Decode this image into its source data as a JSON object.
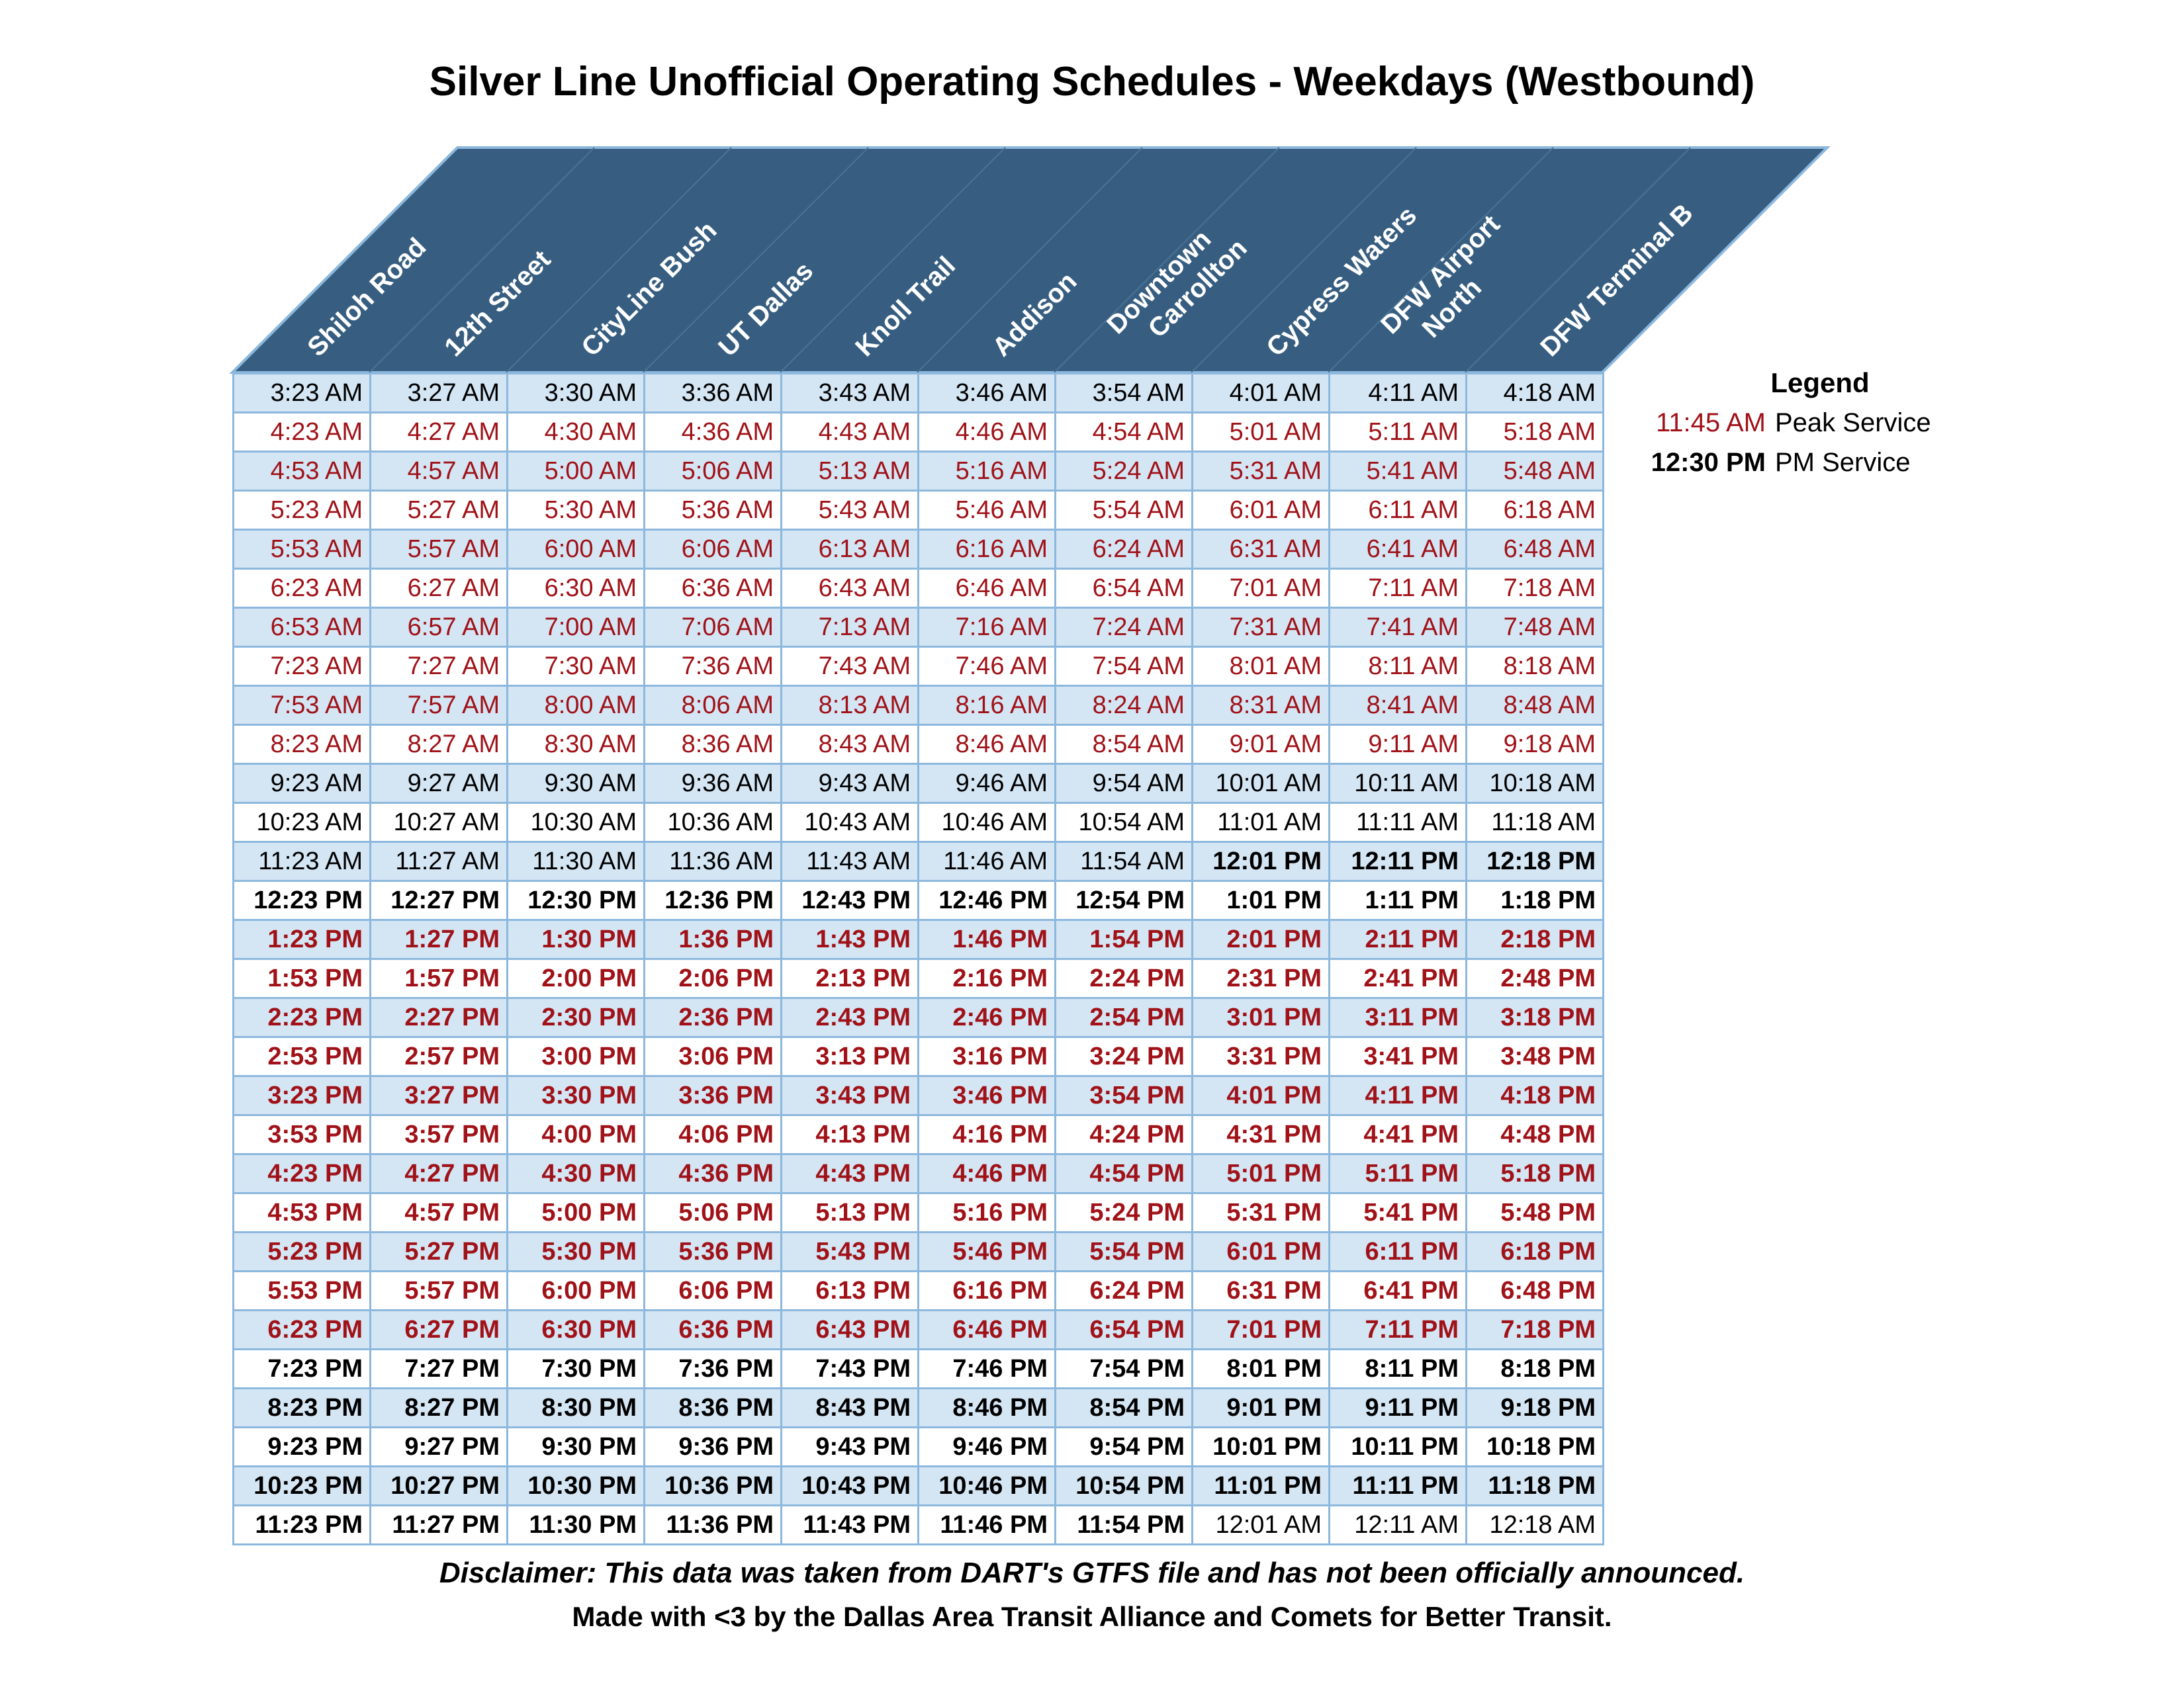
{
  "title": "Silver Line Unofficial Operating Schedules - Weekdays (Westbound)",
  "colors": {
    "header": "#375e80",
    "peak": "#a01218",
    "grid": "#8db8de",
    "shade": "#d4e5f4"
  },
  "stations": [
    [
      "Shiloh Road"
    ],
    [
      "12th Street"
    ],
    [
      "CityLine Bush"
    ],
    [
      "UT Dallas"
    ],
    [
      "Knoll Trail"
    ],
    [
      "Addison"
    ],
    [
      "Downtown",
      "Carrollton"
    ],
    [
      "Cypress Waters"
    ],
    [
      "DFW Airport",
      "North"
    ],
    [
      "DFW Terminal B"
    ]
  ],
  "rows": [
    {
      "style": "normal",
      "times": [
        "3:23 AM",
        "3:27 AM",
        "3:30 AM",
        "3:36 AM",
        "3:43 AM",
        "3:46 AM",
        "3:54 AM",
        "4:01 AM",
        "4:11 AM",
        "4:18 AM"
      ]
    },
    {
      "style": "peak",
      "times": [
        "4:23 AM",
        "4:27 AM",
        "4:30 AM",
        "4:36 AM",
        "4:43 AM",
        "4:46 AM",
        "4:54 AM",
        "5:01 AM",
        "5:11 AM",
        "5:18 AM"
      ]
    },
    {
      "style": "peak",
      "times": [
        "4:53 AM",
        "4:57 AM",
        "5:00 AM",
        "5:06 AM",
        "5:13 AM",
        "5:16 AM",
        "5:24 AM",
        "5:31 AM",
        "5:41 AM",
        "5:48 AM"
      ]
    },
    {
      "style": "peak",
      "times": [
        "5:23 AM",
        "5:27 AM",
        "5:30 AM",
        "5:36 AM",
        "5:43 AM",
        "5:46 AM",
        "5:54 AM",
        "6:01 AM",
        "6:11 AM",
        "6:18 AM"
      ]
    },
    {
      "style": "peak",
      "times": [
        "5:53 AM",
        "5:57 AM",
        "6:00 AM",
        "6:06 AM",
        "6:13 AM",
        "6:16 AM",
        "6:24 AM",
        "6:31 AM",
        "6:41 AM",
        "6:48 AM"
      ]
    },
    {
      "style": "peak",
      "times": [
        "6:23 AM",
        "6:27 AM",
        "6:30 AM",
        "6:36 AM",
        "6:43 AM",
        "6:46 AM",
        "6:54 AM",
        "7:01 AM",
        "7:11 AM",
        "7:18 AM"
      ]
    },
    {
      "style": "peak",
      "times": [
        "6:53 AM",
        "6:57 AM",
        "7:00 AM",
        "7:06 AM",
        "7:13 AM",
        "7:16 AM",
        "7:24 AM",
        "7:31 AM",
        "7:41 AM",
        "7:48 AM"
      ]
    },
    {
      "style": "peak",
      "times": [
        "7:23 AM",
        "7:27 AM",
        "7:30 AM",
        "7:36 AM",
        "7:43 AM",
        "7:46 AM",
        "7:54 AM",
        "8:01 AM",
        "8:11 AM",
        "8:18 AM"
      ]
    },
    {
      "style": "peak",
      "times": [
        "7:53 AM",
        "7:57 AM",
        "8:00 AM",
        "8:06 AM",
        "8:13 AM",
        "8:16 AM",
        "8:24 AM",
        "8:31 AM",
        "8:41 AM",
        "8:48 AM"
      ]
    },
    {
      "style": "peak",
      "times": [
        "8:23 AM",
        "8:27 AM",
        "8:30 AM",
        "8:36 AM",
        "8:43 AM",
        "8:46 AM",
        "8:54 AM",
        "9:01 AM",
        "9:11 AM",
        "9:18 AM"
      ]
    },
    {
      "style": "normal",
      "times": [
        "9:23 AM",
        "9:27 AM",
        "9:30 AM",
        "9:36 AM",
        "9:43 AM",
        "9:46 AM",
        "9:54 AM",
        "10:01 AM",
        "10:11 AM",
        "10:18 AM"
      ]
    },
    {
      "style": "normal",
      "times": [
        "10:23 AM",
        "10:27 AM",
        "10:30 AM",
        "10:36 AM",
        "10:43 AM",
        "10:46 AM",
        "10:54 AM",
        "11:01 AM",
        "11:11 AM",
        "11:18 AM"
      ]
    },
    {
      "style": "normal",
      "times": [
        "11:23 AM",
        "11:27 AM",
        "11:30 AM",
        "11:36 AM",
        "11:43 AM",
        "11:46 AM",
        "11:54 AM",
        "12:01 PM",
        "12:11 PM",
        "12:18 PM"
      ]
    },
    {
      "style": "pm",
      "times": [
        "12:23 PM",
        "12:27 PM",
        "12:30 PM",
        "12:36 PM",
        "12:43 PM",
        "12:46 PM",
        "12:54 PM",
        "1:01 PM",
        "1:11 PM",
        "1:18 PM"
      ]
    },
    {
      "style": "peak-pm",
      "times": [
        "1:23 PM",
        "1:27 PM",
        "1:30 PM",
        "1:36 PM",
        "1:43 PM",
        "1:46 PM",
        "1:54 PM",
        "2:01 PM",
        "2:11 PM",
        "2:18 PM"
      ]
    },
    {
      "style": "peak-pm",
      "times": [
        "1:53 PM",
        "1:57 PM",
        "2:00 PM",
        "2:06 PM",
        "2:13 PM",
        "2:16 PM",
        "2:24 PM",
        "2:31 PM",
        "2:41 PM",
        "2:48 PM"
      ]
    },
    {
      "style": "peak-pm",
      "times": [
        "2:23 PM",
        "2:27 PM",
        "2:30 PM",
        "2:36 PM",
        "2:43 PM",
        "2:46 PM",
        "2:54 PM",
        "3:01 PM",
        "3:11 PM",
        "3:18 PM"
      ]
    },
    {
      "style": "peak-pm",
      "times": [
        "2:53 PM",
        "2:57 PM",
        "3:00 PM",
        "3:06 PM",
        "3:13 PM",
        "3:16 PM",
        "3:24 PM",
        "3:31 PM",
        "3:41 PM",
        "3:48 PM"
      ]
    },
    {
      "style": "peak-pm",
      "times": [
        "3:23 PM",
        "3:27 PM",
        "3:30 PM",
        "3:36 PM",
        "3:43 PM",
        "3:46 PM",
        "3:54 PM",
        "4:01 PM",
        "4:11 PM",
        "4:18 PM"
      ]
    },
    {
      "style": "peak-pm",
      "times": [
        "3:53 PM",
        "3:57 PM",
        "4:00 PM",
        "4:06 PM",
        "4:13 PM",
        "4:16 PM",
        "4:24 PM",
        "4:31 PM",
        "4:41 PM",
        "4:48 PM"
      ]
    },
    {
      "style": "peak-pm",
      "times": [
        "4:23 PM",
        "4:27 PM",
        "4:30 PM",
        "4:36 PM",
        "4:43 PM",
        "4:46 PM",
        "4:54 PM",
        "5:01 PM",
        "5:11 PM",
        "5:18 PM"
      ]
    },
    {
      "style": "peak-pm",
      "times": [
        "4:53 PM",
        "4:57 PM",
        "5:00 PM",
        "5:06 PM",
        "5:13 PM",
        "5:16 PM",
        "5:24 PM",
        "5:31 PM",
        "5:41 PM",
        "5:48 PM"
      ]
    },
    {
      "style": "peak-pm",
      "times": [
        "5:23 PM",
        "5:27 PM",
        "5:30 PM",
        "5:36 PM",
        "5:43 PM",
        "5:46 PM",
        "5:54 PM",
        "6:01 PM",
        "6:11 PM",
        "6:18 PM"
      ]
    },
    {
      "style": "peak-pm",
      "times": [
        "5:53 PM",
        "5:57 PM",
        "6:00 PM",
        "6:06 PM",
        "6:13 PM",
        "6:16 PM",
        "6:24 PM",
        "6:31 PM",
        "6:41 PM",
        "6:48 PM"
      ]
    },
    {
      "style": "peak-pm",
      "times": [
        "6:23 PM",
        "6:27 PM",
        "6:30 PM",
        "6:36 PM",
        "6:43 PM",
        "6:46 PM",
        "6:54 PM",
        "7:01 PM",
        "7:11 PM",
        "7:18 PM"
      ]
    },
    {
      "style": "pm",
      "times": [
        "7:23 PM",
        "7:27 PM",
        "7:30 PM",
        "7:36 PM",
        "7:43 PM",
        "7:46 PM",
        "7:54 PM",
        "8:01 PM",
        "8:11 PM",
        "8:18 PM"
      ]
    },
    {
      "style": "pm",
      "times": [
        "8:23 PM",
        "8:27 PM",
        "8:30 PM",
        "8:36 PM",
        "8:43 PM",
        "8:46 PM",
        "8:54 PM",
        "9:01 PM",
        "9:11 PM",
        "9:18 PM"
      ]
    },
    {
      "style": "pm",
      "times": [
        "9:23 PM",
        "9:27 PM",
        "9:30 PM",
        "9:36 PM",
        "9:43 PM",
        "9:46 PM",
        "9:54 PM",
        "10:01 PM",
        "10:11 PM",
        "10:18 PM"
      ]
    },
    {
      "style": "pm",
      "times": [
        "10:23 PM",
        "10:27 PM",
        "10:30 PM",
        "10:36 PM",
        "10:43 PM",
        "10:46 PM",
        "10:54 PM",
        "11:01 PM",
        "11:11 PM",
        "11:18 PM"
      ]
    },
    {
      "style": "pm",
      "times": [
        "11:23 PM",
        "11:27 PM",
        "11:30 PM",
        "11:36 PM",
        "11:43 PM",
        "11:46 PM",
        "11:54 PM",
        "12:01 AM",
        "12:11 AM",
        "12:18 AM"
      ]
    }
  ],
  "legend": {
    "title": "Legend",
    "peak_sample": "11:45 AM",
    "peak_label": "Peak Service",
    "pm_sample": "12:30 PM",
    "pm_label": "PM Service"
  },
  "disclaimer": "Disclaimer: This data was taken from DART's GTFS file and has not been officially announced.",
  "credit": "Made with <3 by the Dallas Area Transit Alliance and Comets for Better Transit."
}
